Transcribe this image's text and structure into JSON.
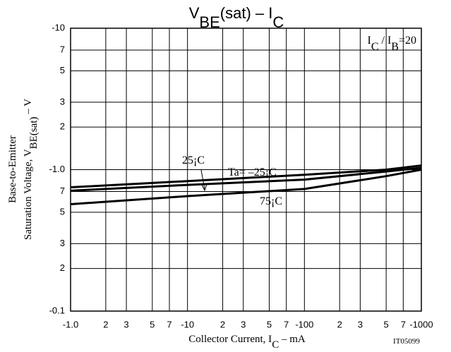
{
  "chart_data": {
    "type": "line",
    "title": [
      "V",
      "BE",
      "(sat)  –  I",
      "C"
    ],
    "y_label": [
      "Base-to-Emitter",
      "Saturation Voltage, V",
      "BE(sat)",
      "  –  V"
    ],
    "x_label": [
      "Collector Current, I",
      "C",
      "  –  mA"
    ],
    "annotation": [
      "I",
      "C",
      " / I",
      "B",
      "=20"
    ],
    "code": "IT05099",
    "xscale": "log",
    "yscale": "log",
    "grid": true,
    "xlim": [
      -1,
      -1000
    ],
    "ylim": [
      -0.1,
      -10
    ],
    "xticks": [
      {
        "value": -1,
        "label": "-1.0"
      },
      {
        "value": -2,
        "label": "2"
      },
      {
        "value": -3,
        "label": "3"
      },
      {
        "value": -5,
        "label": "5"
      },
      {
        "value": -7,
        "label": "7"
      },
      -10,
      {
        "value": -20,
        "label": "2"
      },
      {
        "value": -30,
        "label": "3"
      },
      {
        "value": -50,
        "label": "5"
      },
      {
        "value": -70,
        "label": "7"
      },
      -100,
      {
        "value": -200,
        "label": "2"
      },
      {
        "value": -300,
        "label": "3"
      },
      {
        "value": -500,
        "label": "5"
      },
      {
        "value": -700,
        "label": "7"
      },
      -1000
    ],
    "yticks": [
      -0.1,
      {
        "value": -0.2,
        "label": "2"
      },
      {
        "value": -0.3,
        "label": "3"
      },
      {
        "value": -0.5,
        "label": "5"
      },
      {
        "value": -0.7,
        "label": "7"
      },
      {
        "value": -1,
        "label": "-1.0"
      },
      {
        "value": -2,
        "label": "2"
      },
      {
        "value": -3,
        "label": "3"
      },
      {
        "value": -5,
        "label": "5"
      },
      {
        "value": -7,
        "label": "7"
      },
      -10
    ],
    "x": [
      -1,
      -10,
      -100,
      -500,
      -1000
    ],
    "series": [
      {
        "name": "Ta= –25¡C",
        "color": "#000000",
        "values": [
          -0.75,
          -0.83,
          -0.92,
          -1.0,
          -1.07
        ]
      },
      {
        "name": "25¡C",
        "color": "#000000",
        "values": [
          -0.71,
          -0.78,
          -0.85,
          -0.97,
          -1.03
        ]
      },
      {
        "name": "75¡C",
        "color": "#000000",
        "values": [
          -0.57,
          -0.65,
          -0.73,
          -0.9,
          -1.0
        ]
      }
    ]
  }
}
